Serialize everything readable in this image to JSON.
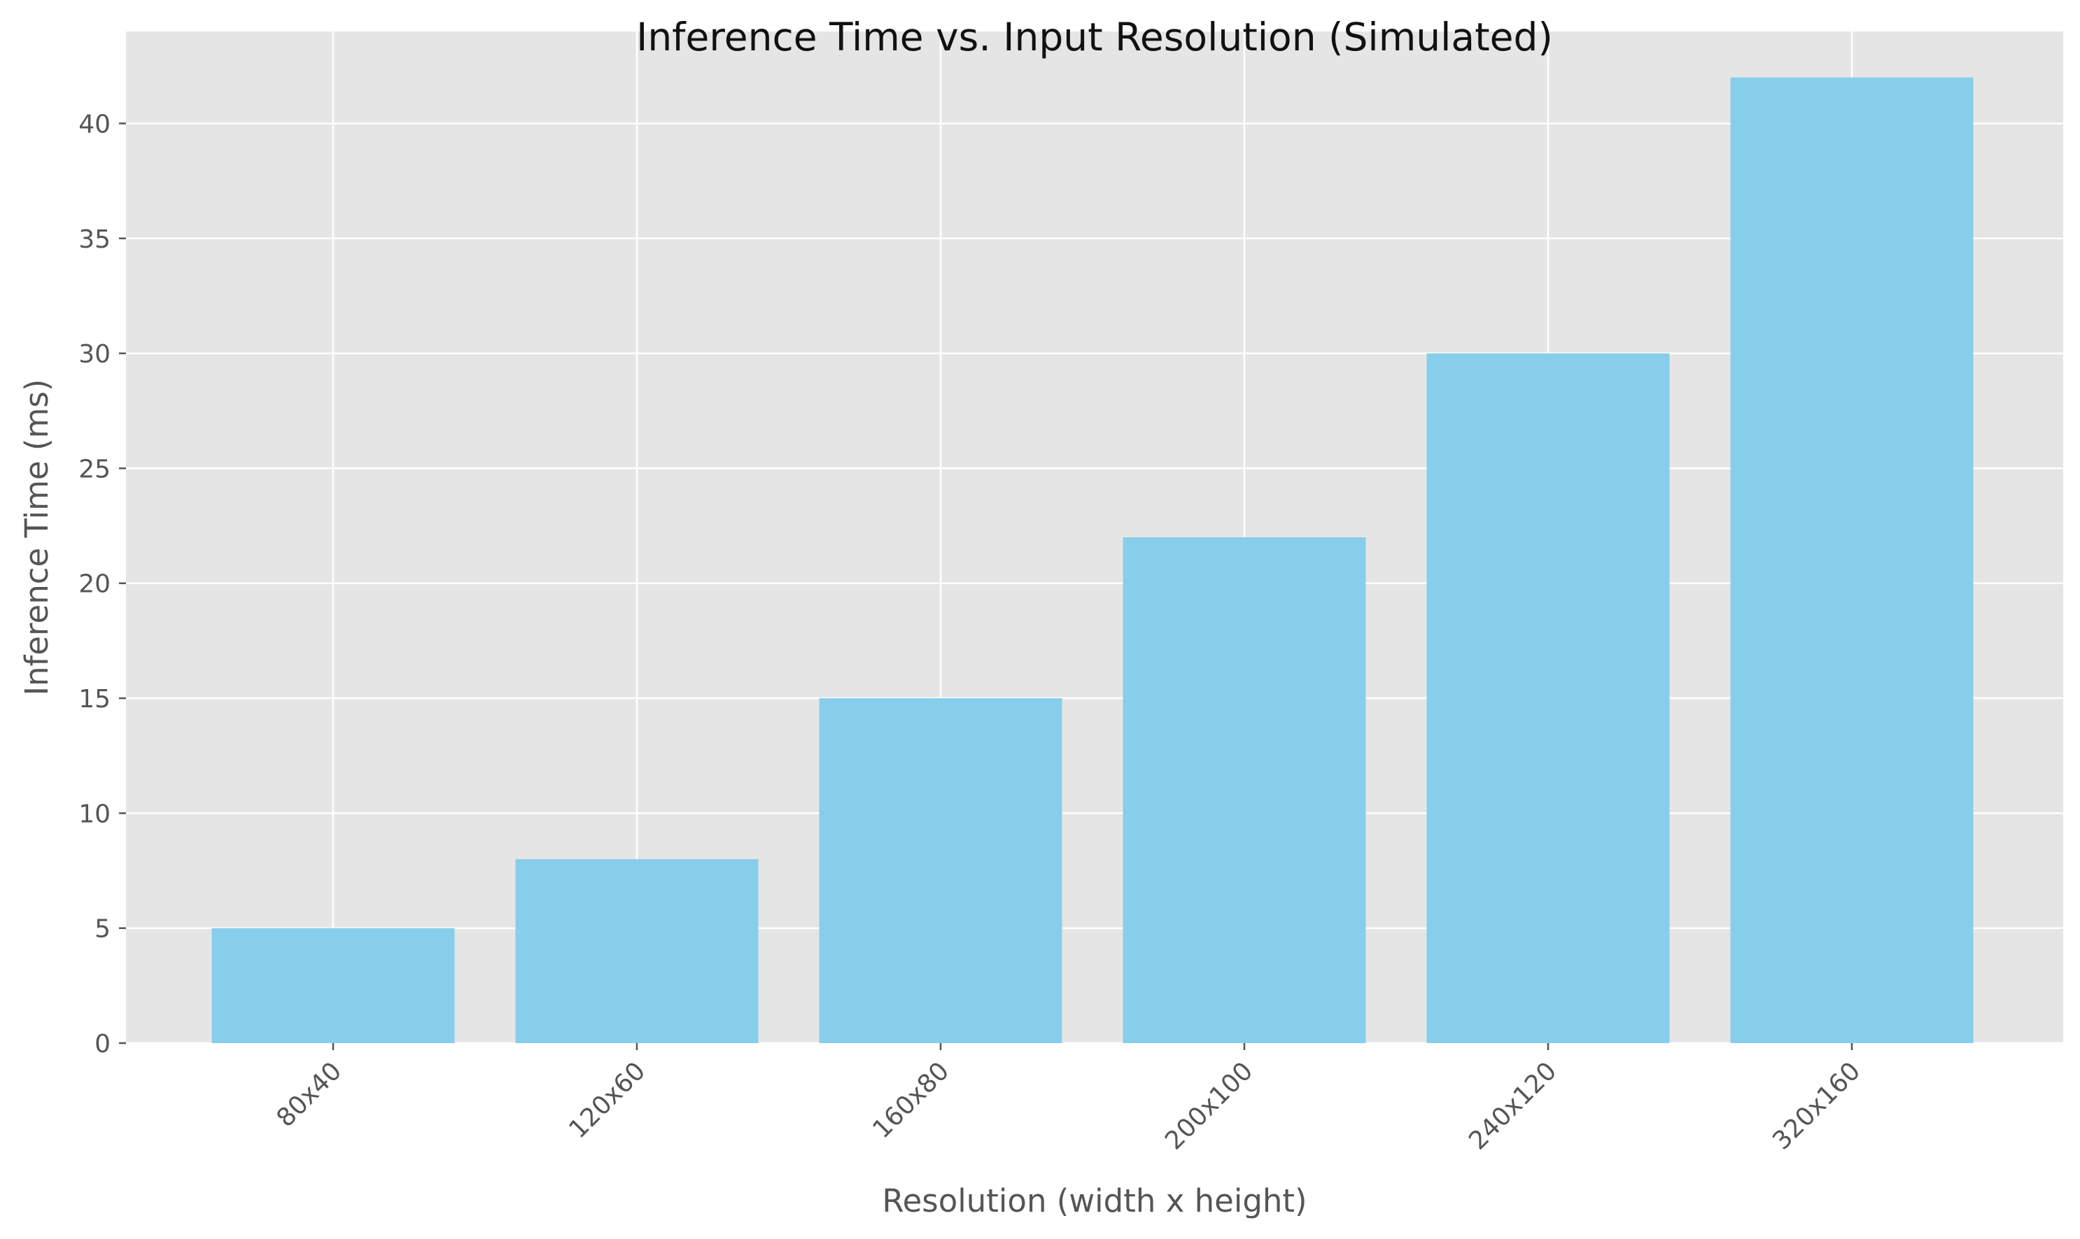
{
  "chart_data": {
    "type": "bar",
    "title": "Inference Time vs. Input Resolution (Simulated)",
    "xlabel": "Resolution (width x height)",
    "ylabel": "Inference Time (ms)",
    "categories": [
      "80x40",
      "120x60",
      "160x80",
      "200x100",
      "240x120",
      "320x160"
    ],
    "values": [
      5,
      8,
      15,
      22,
      30,
      42
    ],
    "ylim": [
      0,
      44
    ],
    "yticks": [
      0,
      5,
      10,
      15,
      20,
      25,
      30,
      35,
      40
    ],
    "grid": true,
    "x_tick_rotation_deg": 45,
    "colors": {
      "bar": "#87CEEB",
      "plot_background": "#E5E5E5",
      "grid": "#FFFFFF",
      "text": "#555555"
    }
  }
}
